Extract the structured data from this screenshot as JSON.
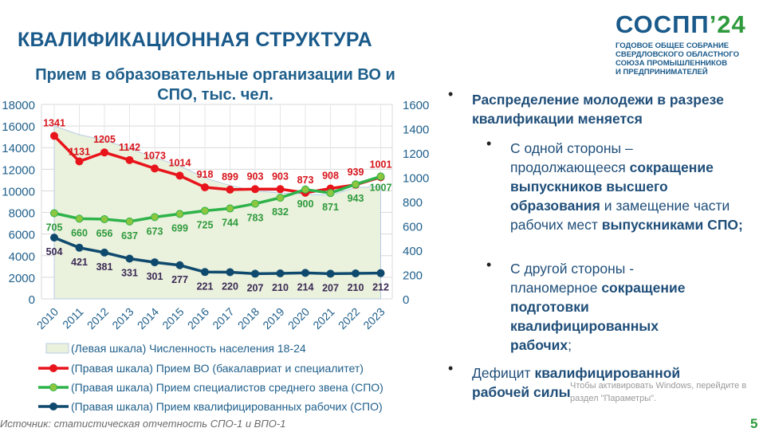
{
  "slide": {
    "title": "КВАЛИФИКАЦИОННАЯ СТРУКТУРА",
    "page_number": "5",
    "source": "Источник: статистическая отчетность СПО-1 и ВПО-1"
  },
  "logo": {
    "main": "СОСПП",
    "year": "’24",
    "subtitle": [
      "ГОДОВОЕ ОБЩЕЕ СОБРАНИЕ",
      "СВЕРДЛОВСКОГО ОБЛАСТНОГО",
      "СОЮЗА ПРОМЫШЛЕННИКОВ",
      "И ПРЕДПРИНИМАТЕЛЕЙ"
    ]
  },
  "watermark": [
    "Чтобы активировать Windows, перейдите в",
    "раздел \"Параметры\"."
  ],
  "bullets": {
    "main1": "Распределение молодежи в разрезе квалификации меняется",
    "sub1": {
      "a": "С одной стороны – продолжающееся ",
      "b": "сокращение выпускников высшего образования",
      "c": " и замещение части рабочих мест ",
      "d": "выпускниками СПО;"
    },
    "sub2": {
      "a": "С другой стороны - планомерное ",
      "b": "сокращение подготовки квалифицированных рабочих",
      "c": ";"
    },
    "main2": {
      "a": "Дефицит ",
      "b": "квалифицированной рабочей силы"
    }
  },
  "chart_data": {
    "type": "line",
    "title": "Прием в образовательные организации ВО и СПО, тыс. чел.",
    "categories": [
      "2010",
      "2011",
      "2012",
      "2013",
      "2014",
      "2015",
      "2016",
      "2017",
      "2018",
      "2019",
      "2020",
      "2021",
      "2022",
      "2023"
    ],
    "left_axis": {
      "range": [
        0,
        18000
      ],
      "ticks": [
        "0",
        "2000",
        "4000",
        "6000",
        "8000",
        "10000",
        "12000",
        "14000",
        "16000",
        "18000"
      ]
    },
    "right_axis": {
      "range": [
        0,
        1600
      ],
      "ticks": [
        "0",
        "200",
        "400",
        "600",
        "800",
        "1000",
        "1200",
        "1400",
        "1600"
      ]
    },
    "grid": true,
    "legend_placement": "bottom",
    "series": [
      {
        "name": "(Левая шкала) Численность населения 18-24",
        "type": "area",
        "axis": "left",
        "color": "#eaf1dc",
        "values": [
          16000,
          15200,
          14700,
          13900,
          13100,
          12300,
          11200,
          10500,
          10000,
          9800,
          9700,
          9600,
          10300,
          10400
        ]
      },
      {
        "name": "(Правая шкала) Прием ВО (бакалавриат и специалитет)",
        "type": "line",
        "axis": "right",
        "color": "#e8141b",
        "marker": "#e8141b",
        "values": [
          1341,
          1131,
          1205,
          1142,
          1073,
          1014,
          918,
          899,
          903,
          903,
          873,
          908,
          939,
          1001
        ]
      },
      {
        "name": "(Правая шкала) Прием специалистов среднего звена (СПО)",
        "type": "line",
        "axis": "right",
        "color": "#2db34a",
        "marker": "#8dc63f",
        "values": [
          705,
          660,
          656,
          637,
          673,
          699,
          725,
          744,
          783,
          832,
          900,
          871,
          943,
          1007
        ]
      },
      {
        "name": "(Правая шкала) Прием квалифицированных рабочих (СПО)",
        "type": "line",
        "axis": "right",
        "color": "#0f4a6e",
        "marker": "#0f4a6e",
        "values": [
          504,
          421,
          381,
          331,
          301,
          277,
          221,
          220,
          207,
          210,
          214,
          207,
          210,
          212
        ]
      }
    ]
  }
}
